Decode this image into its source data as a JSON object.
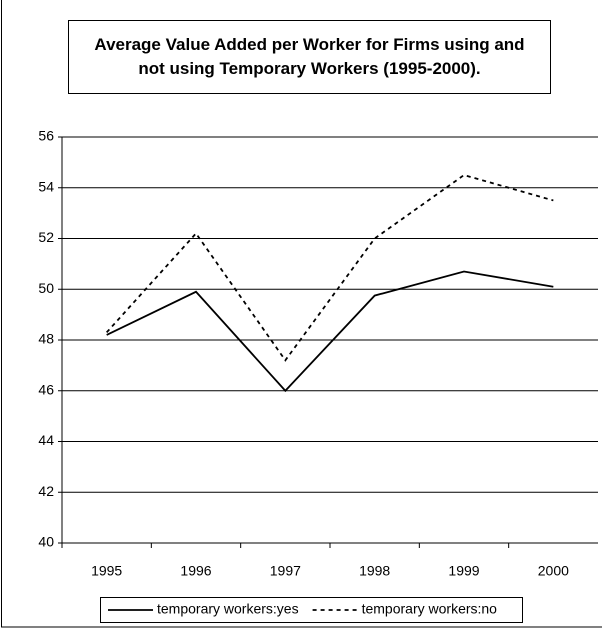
{
  "chart_data": {
    "type": "line",
    "title": "Average Value Added per Worker for Firms using and not using Temporary Workers (1995-2000).",
    "categories": [
      "1995",
      "1996",
      "1997",
      "1998",
      "1999",
      "2000"
    ],
    "series": [
      {
        "name": "temporary workers:yes",
        "color": "#000000",
        "line_style": "solid",
        "values": [
          48.2,
          49.9,
          46.0,
          49.75,
          50.7,
          50.1
        ]
      },
      {
        "name": "temporary workers:no",
        "color": "#000000",
        "line_style": "dashed",
        "values": [
          48.3,
          52.2,
          47.2,
          52.0,
          54.5,
          53.5
        ]
      }
    ],
    "ylim": [
      40,
      56
    ],
    "yticks": [
      40,
      42,
      44,
      46,
      48,
      50,
      52,
      54,
      56
    ],
    "grid": true,
    "legend": "bottom"
  }
}
